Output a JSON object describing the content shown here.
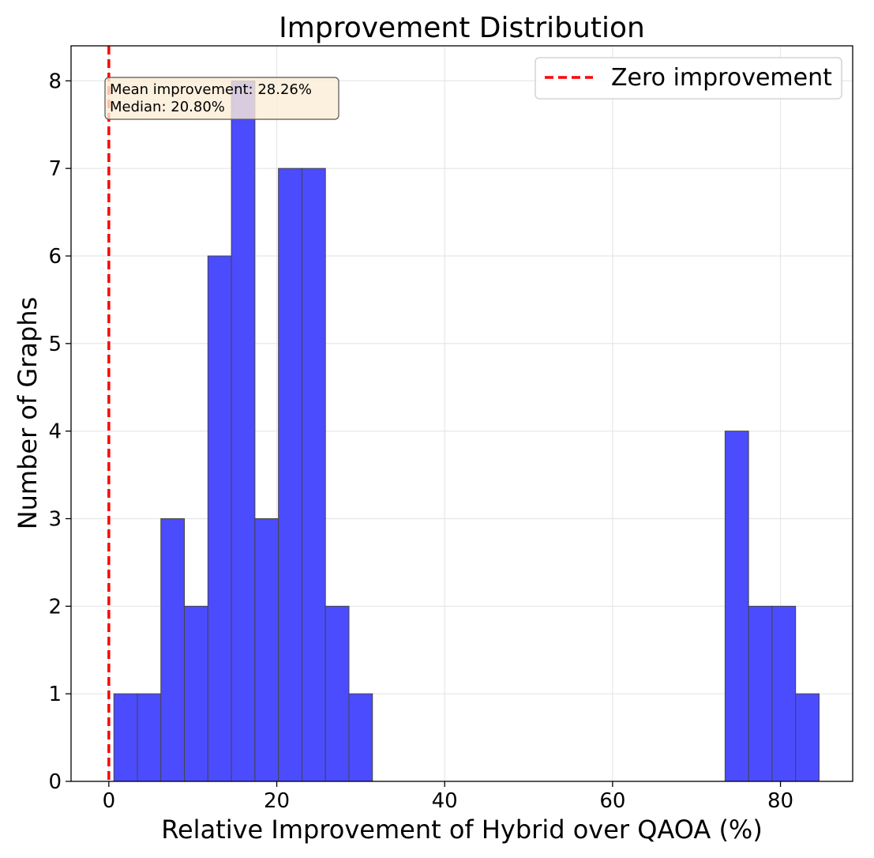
{
  "chart_data": {
    "type": "bar",
    "title": "Improvement Distribution",
    "xlabel": "Relative Improvement of Hybrid over QAOA (%)",
    "ylabel": "Number of Graphs",
    "xlim": [
      -4.5,
      88.6
    ],
    "ylim": [
      0,
      8.4
    ],
    "xticks": [
      0,
      20,
      40,
      60,
      80
    ],
    "yticks": [
      0,
      1,
      2,
      3,
      4,
      5,
      6,
      7,
      8
    ],
    "grid": true,
    "bar_color": "#4c4cff",
    "bar_edge_color": "#444444",
    "bin_width": 2.8,
    "bins": [
      {
        "start": 0.6,
        "count": 1
      },
      {
        "start": 3.4,
        "count": 1
      },
      {
        "start": 6.2,
        "count": 3
      },
      {
        "start": 9.0,
        "count": 2
      },
      {
        "start": 11.8,
        "count": 6
      },
      {
        "start": 14.6,
        "count": 8
      },
      {
        "start": 17.4,
        "count": 3
      },
      {
        "start": 20.2,
        "count": 7
      },
      {
        "start": 23.0,
        "count": 7
      },
      {
        "start": 25.8,
        "count": 2
      },
      {
        "start": 28.6,
        "count": 1
      },
      {
        "start": 73.4,
        "count": 4
      },
      {
        "start": 76.2,
        "count": 2
      },
      {
        "start": 79.0,
        "count": 2
      },
      {
        "start": 81.8,
        "count": 1
      }
    ],
    "reference_line": {
      "x": 0,
      "color": "#ff0000",
      "style": "dashed",
      "label": "Zero improvement"
    },
    "legend": {
      "position": "top-right",
      "entries": [
        "Zero improvement"
      ]
    },
    "annotation": {
      "lines": [
        "Mean improvement: 28.26%",
        "Median: 20.80%"
      ],
      "position": "top-left",
      "box_color": "#fbecd6"
    }
  }
}
